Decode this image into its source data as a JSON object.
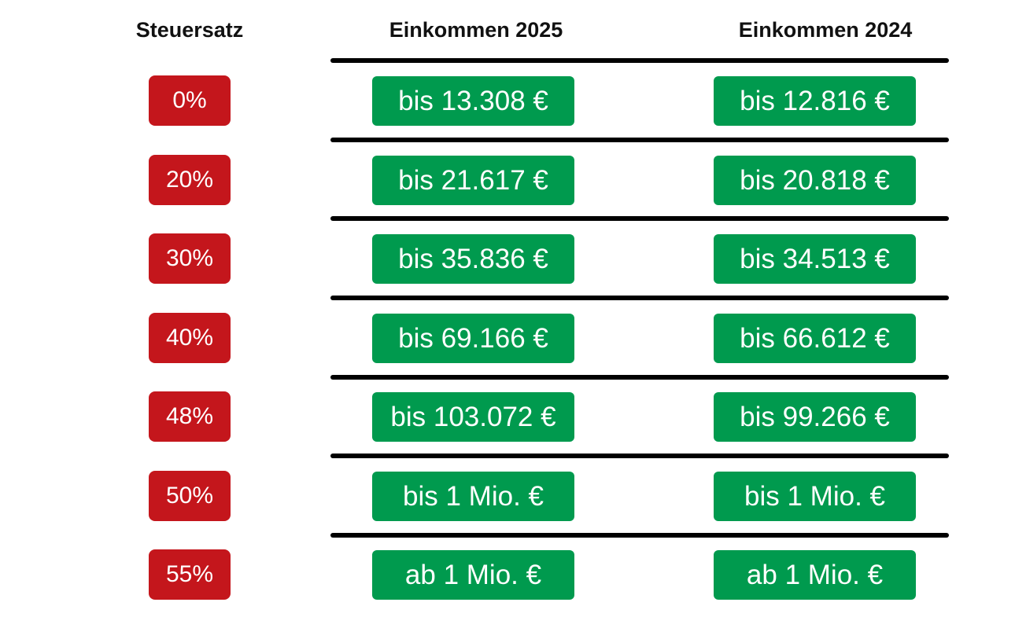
{
  "headers": {
    "rate": "Steuersatz",
    "income_2025": "Einkommen 2025",
    "income_2024": "Einkommen 2024"
  },
  "colors": {
    "rate_badge": "#c4161c",
    "income_badge": "#009a4e",
    "divider": "#000000"
  },
  "rows": [
    {
      "rate": "0%",
      "income_2025": "bis 13.308 €",
      "income_2024": "bis 12.816 €"
    },
    {
      "rate": "20%",
      "income_2025": "bis 21.617 €",
      "income_2024": "bis 20.818 €"
    },
    {
      "rate": "30%",
      "income_2025": "bis 35.836 €",
      "income_2024": "bis 34.513 €"
    },
    {
      "rate": "40%",
      "income_2025": "bis 69.166 €",
      "income_2024": "bis 66.612 €"
    },
    {
      "rate": "48%",
      "income_2025": "bis 103.072 €",
      "income_2024": "bis 99.266 €"
    },
    {
      "rate": "50%",
      "income_2025": "bis 1 Mio. €",
      "income_2024": "bis 1 Mio. €"
    },
    {
      "rate": "55%",
      "income_2025": "ab 1 Mio. €",
      "income_2024": "ab 1 Mio. €"
    }
  ]
}
